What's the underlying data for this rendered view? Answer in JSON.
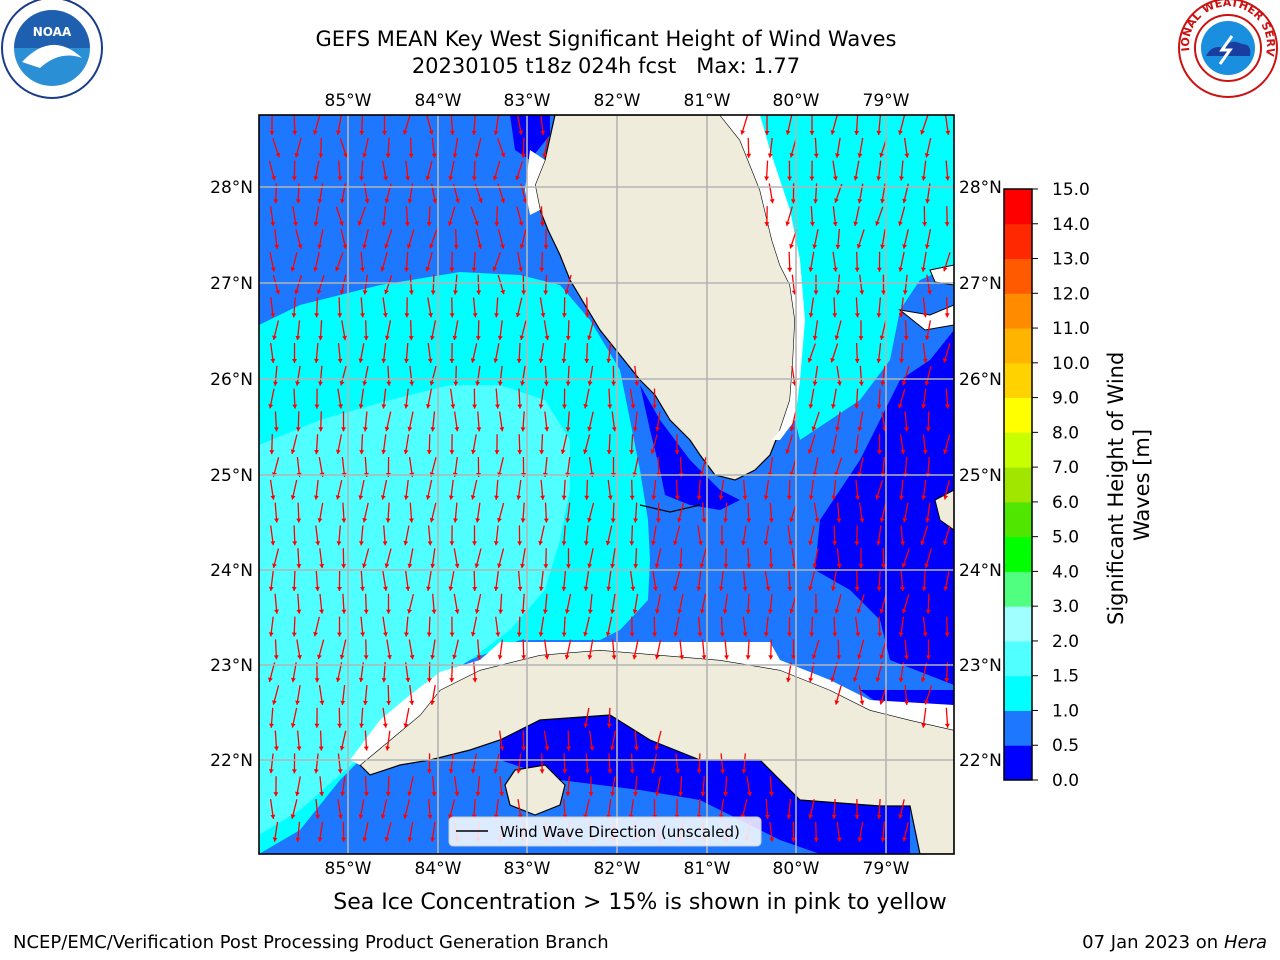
{
  "title": {
    "line1": "GEFS MEAN Key West Significant Height of Wind Waves",
    "line2": "20230105 t18z 024h fcst   Max: 1.77"
  },
  "subtitle": "Sea Ice Concentration > 15% is shown in pink to yellow",
  "credit": "NCEP/EMC/Verification Post Processing Product Generation Branch",
  "datestamp": {
    "date": "07 Jan 2023 on ",
    "host": "Hera"
  },
  "logos": {
    "left": "NOAA",
    "right": "NATIONAL WEATHER SERVICE"
  },
  "legend": {
    "label": "Wind Wave Direction (unscaled)"
  },
  "map": {
    "lon_ticks": [
      "85°W",
      "84°W",
      "83°W",
      "82°W",
      "81°W",
      "80°W",
      "79°W"
    ],
    "lat_ticks": [
      "28°N",
      "27°N",
      "26°N",
      "25°N",
      "24°N",
      "23°N",
      "22°N"
    ],
    "lon_range": [
      -86.0,
      -78.25
    ],
    "lat_range": [
      21.0,
      28.75
    ],
    "grid": true,
    "arrow_color": "#ff0000"
  },
  "colorbar": {
    "label": "Significant Height of Wind Waves [m]",
    "label_line1": "Significant Height of Wind",
    "label_line2": "Waves [m]",
    "ticks": [
      "15.0",
      "14.0",
      "13.0",
      "12.0",
      "11.0",
      "10.0",
      "9.0",
      "8.0",
      "7.0",
      "6.0",
      "5.0",
      "4.0",
      "3.0",
      "2.0",
      "1.5",
      "1.0",
      "0.5",
      "0.0"
    ],
    "colors": [
      "#0000ff",
      "#1e78ff",
      "#00ffff",
      "#50ffff",
      "#a0ffff",
      "#50ff80",
      "#00ff00",
      "#50e600",
      "#a0e600",
      "#c8ff00",
      "#ffff00",
      "#ffd200",
      "#ffb400",
      "#ff8c00",
      "#ff5a00",
      "#ff2800",
      "#ff0000"
    ]
  },
  "colors": {
    "land": "#efecdc",
    "coast": "#000000",
    "grid": "#b4b4b4"
  }
}
